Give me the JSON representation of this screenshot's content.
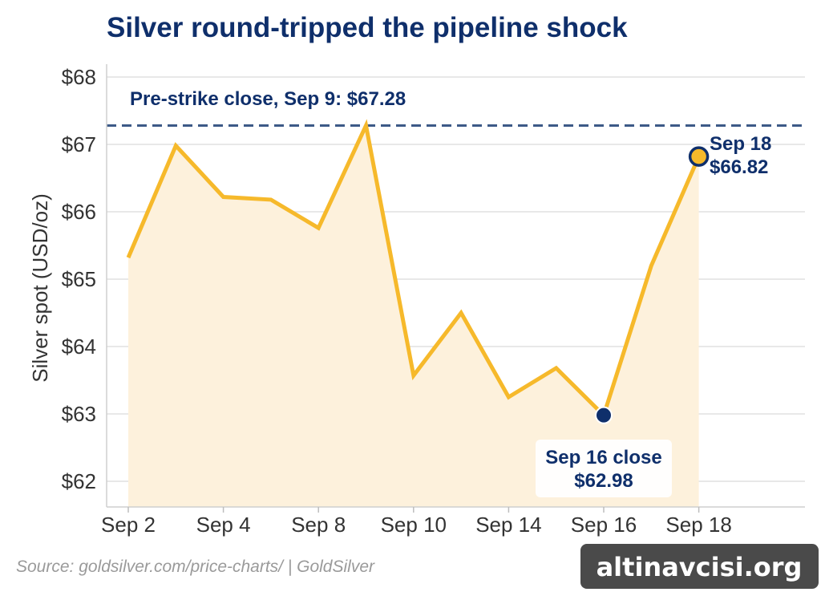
{
  "chart_data": {
    "type": "line",
    "title": "Silver round-tripped the pipeline shock",
    "xlabel": "",
    "ylabel": "Silver spot (USD/oz)",
    "ylim": [
      61.6,
      68.2
    ],
    "y_ticks": [
      62,
      63,
      64,
      65,
      66,
      67,
      68
    ],
    "y_tick_labels": [
      "$62",
      "$63",
      "$64",
      "$65",
      "$66",
      "$67",
      "$68"
    ],
    "x_tick_labels": [
      "Sep 2",
      "Sep 4",
      "Sep 8",
      "Sep 10",
      "Sep 14",
      "Sep 16",
      "Sep 18"
    ],
    "x_tick_positions": [
      0,
      2,
      4,
      6,
      8,
      10,
      12
    ],
    "series": [
      {
        "x": [
          0,
          1,
          2,
          3,
          4,
          5,
          6,
          7,
          8,
          9,
          10,
          11,
          12
        ],
        "dates": [
          "Sep 2",
          "Sep 3",
          "Sep 4",
          "Sep 5",
          "Sep 8",
          "Sep 9",
          "Sep 10",
          "Sep 11",
          "Sep 14",
          "Sep 15",
          "Sep 16",
          "Sep 17",
          "Sep 18"
        ],
        "values": [
          65.32,
          66.98,
          66.22,
          66.18,
          65.76,
          67.28,
          63.57,
          64.5,
          63.25,
          63.68,
          62.98,
          65.2,
          66.82
        ],
        "color": "#f6b92b",
        "fill": "#fdf1dc"
      }
    ],
    "reference_line": {
      "value": 67.28,
      "color": "#3d5a87",
      "style": "dashed"
    },
    "annotations": {
      "ref_label": "Pre-strike close, Sep 9: $67.28",
      "low_date": "Sep 16 close",
      "low_value": "$62.98",
      "end_date": "Sep 18",
      "end_value": "$66.82"
    },
    "grid": true,
    "colors": {
      "title": "#0f2f6b",
      "marker_low": "#0f2f6b",
      "marker_end_fill": "#f6b92b",
      "marker_end_stroke": "#0f2f6b"
    }
  },
  "footer": {
    "source": "Source: goldsilver.com/price-charts/  |  GoldSilver",
    "watermark": "altinavcisi.org"
  }
}
